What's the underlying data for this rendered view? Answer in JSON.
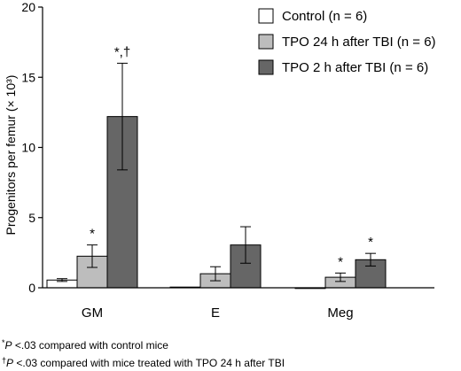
{
  "chart_data": {
    "type": "bar",
    "ylabel": "Progenitors per femur (× 10³)",
    "ylim": [
      0,
      20
    ],
    "yticks": [
      0,
      5,
      10,
      15,
      20
    ],
    "categories": [
      "GM",
      "E",
      "Meg"
    ],
    "series": [
      {
        "name": "Control (n = 6)",
        "color": "#ffffff",
        "values": [
          0.55,
          0.05,
          0.0
        ],
        "errors": [
          0.1,
          0.0,
          0.0
        ],
        "annotations": [
          "",
          "",
          ""
        ]
      },
      {
        "name": "TPO 24 h after TBI (n = 6)",
        "color": "#bdbdbd",
        "values": [
          2.25,
          1.0,
          0.75
        ],
        "errors": [
          0.8,
          0.5,
          0.3
        ],
        "annotations": [
          "*",
          "",
          "*"
        ]
      },
      {
        "name": "TPO 2 h after TBI (n = 6)",
        "color": "#666666",
        "values": [
          12.2,
          3.05,
          2.0
        ],
        "errors": [
          3.8,
          1.3,
          0.45
        ],
        "annotations": [
          "*,†",
          "",
          "*"
        ]
      }
    ],
    "legend_position": "top-right",
    "footnotes": [
      {
        "mark": "*",
        "var": "P",
        "text": " <.03 compared with control mice"
      },
      {
        "mark": "†",
        "var": "P",
        "text": " <.03 compared with mice treated with TPO 24 h after TBI"
      }
    ]
  }
}
